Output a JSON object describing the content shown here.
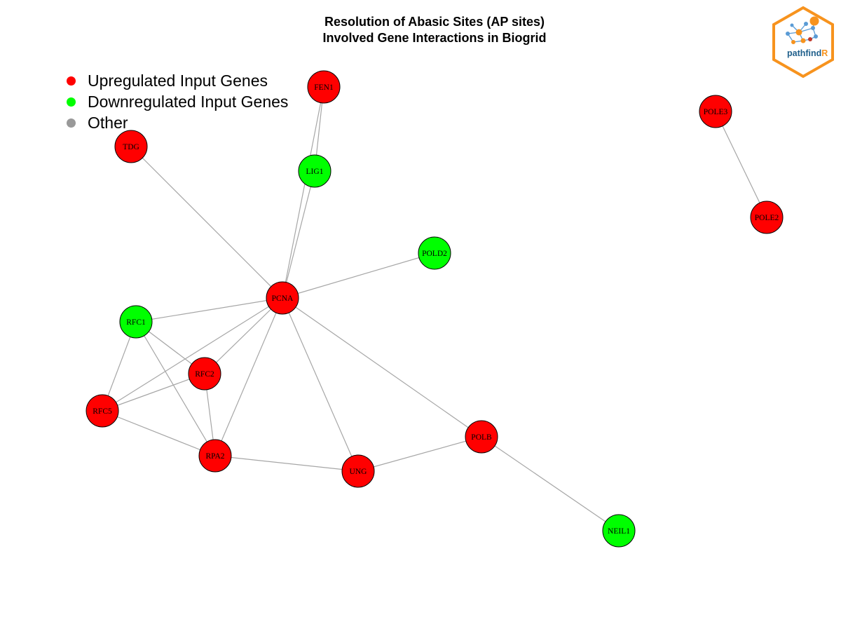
{
  "title": {
    "line1": "Resolution of Abasic Sites (AP sites)",
    "line2": "Involved Gene Interactions in Biogrid"
  },
  "legend": [
    {
      "label": "Upregulated Input Genes",
      "color": "#ff0000"
    },
    {
      "label": "Downregulated Input Genes",
      "color": "#00ff00"
    },
    {
      "label": "Other",
      "color": "#999999"
    }
  ],
  "logo": {
    "text_main": "pathfind",
    "text_accent": "R",
    "border_color": "#f7931e",
    "text_color": "#1f5f8b"
  },
  "colors": {
    "up": "#ff0000",
    "down": "#00ff00",
    "edge": "#a6a6a6"
  },
  "nodes": [
    {
      "id": "FEN1",
      "status": "up"
    },
    {
      "id": "TDG",
      "status": "up"
    },
    {
      "id": "LIG1",
      "status": "down"
    },
    {
      "id": "POLE3",
      "status": "up"
    },
    {
      "id": "POLE2",
      "status": "up"
    },
    {
      "id": "POLD2",
      "status": "down"
    },
    {
      "id": "PCNA",
      "status": "up"
    },
    {
      "id": "RFC1",
      "status": "down"
    },
    {
      "id": "RFC2",
      "status": "up"
    },
    {
      "id": "RFC5",
      "status": "up"
    },
    {
      "id": "RPA2",
      "status": "up"
    },
    {
      "id": "UNG",
      "status": "up"
    },
    {
      "id": "POLB",
      "status": "up"
    },
    {
      "id": "NEIL1",
      "status": "down"
    }
  ],
  "edges": [
    [
      "FEN1",
      "LIG1"
    ],
    [
      "FEN1",
      "PCNA"
    ],
    [
      "LIG1",
      "PCNA"
    ],
    [
      "TDG",
      "PCNA"
    ],
    [
      "POLE3",
      "POLE2"
    ],
    [
      "POLD2",
      "PCNA"
    ],
    [
      "PCNA",
      "RFC1"
    ],
    [
      "PCNA",
      "RFC2"
    ],
    [
      "PCNA",
      "RFC5"
    ],
    [
      "PCNA",
      "RPA2"
    ],
    [
      "PCNA",
      "UNG"
    ],
    [
      "PCNA",
      "POLB"
    ],
    [
      "RFC1",
      "RFC2"
    ],
    [
      "RFC1",
      "RFC5"
    ],
    [
      "RFC1",
      "RPA2"
    ],
    [
      "RFC2",
      "RFC5"
    ],
    [
      "RFC2",
      "RPA2"
    ],
    [
      "RFC5",
      "RPA2"
    ],
    [
      "RPA2",
      "UNG"
    ],
    [
      "UNG",
      "POLB"
    ],
    [
      "POLB",
      "NEIL1"
    ]
  ]
}
